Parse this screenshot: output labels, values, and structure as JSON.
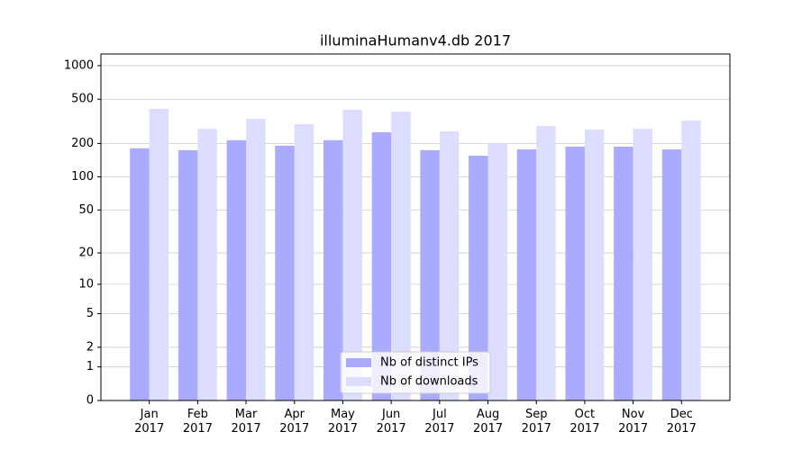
{
  "chart_data": {
    "type": "bar",
    "title": "illuminaHumanv4.db 2017",
    "categories": [
      "Jan\n2017",
      "Feb\n2017",
      "Mar\n2017",
      "Apr\n2017",
      "May\n2017",
      "Jun\n2017",
      "Jul\n2017",
      "Aug\n2017",
      "Sep\n2017",
      "Oct\n2017",
      "Nov\n2017",
      "Dec\n2017"
    ],
    "series": [
      {
        "name": "Nb of distinct IPs",
        "color": "#aaaaff",
        "values": [
          181,
          174,
          214,
          191,
          214,
          252,
          174,
          155,
          177,
          187,
          187,
          177
        ]
      },
      {
        "name": "Nb of downloads",
        "color": "#ddddff",
        "values": [
          409,
          271,
          333,
          298,
          402,
          387,
          257,
          201,
          287,
          266,
          271,
          321
        ]
      }
    ],
    "yscale": "log1p",
    "ylim": [
      0,
      1272
    ],
    "yticks": [
      0,
      1,
      2,
      5,
      10,
      20,
      50,
      100,
      200,
      500,
      1000
    ],
    "grid": true,
    "legend": "lower center"
  }
}
